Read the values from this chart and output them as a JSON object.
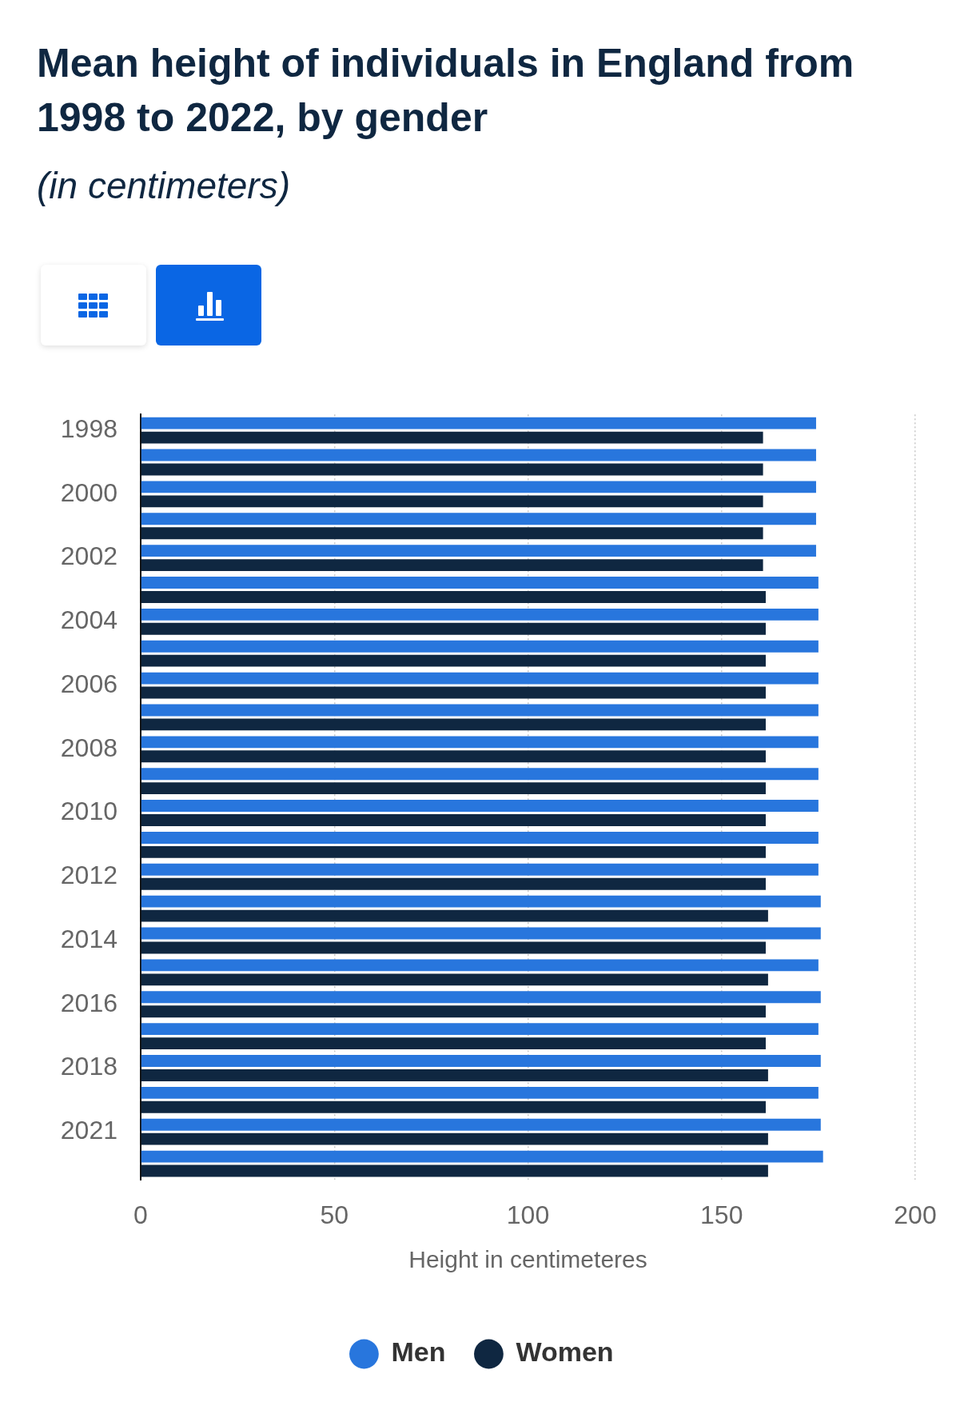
{
  "chart_data": {
    "type": "bar",
    "orientation": "horizontal",
    "title": "Mean height of individuals in England from 1998 to 2022, by gender",
    "subtitle": "(in centimeters)",
    "xlabel": "Height in centimeteres",
    "categories": [
      "1998",
      null,
      "2000",
      null,
      "2002",
      null,
      "2004",
      null,
      "2006",
      null,
      "2008",
      null,
      "2010",
      null,
      "2012",
      null,
      "2014",
      null,
      "2016",
      null,
      "2018",
      null,
      "2021",
      null
    ],
    "series": [
      {
        "name": "Men",
        "color": "#2876dd",
        "values": [
          174.4,
          174.4,
          174.4,
          174.4,
          174.4,
          175.0,
          175.0,
          175.0,
          175.0,
          175.0,
          175.0,
          175.0,
          175.0,
          175.0,
          175.0,
          175.6,
          175.6,
          175.0,
          175.6,
          175.0,
          175.6,
          175.0,
          175.6,
          176.2
        ]
      },
      {
        "name": "Women",
        "color": "#0f2741",
        "values": [
          160.7,
          160.7,
          160.7,
          160.7,
          160.7,
          161.4,
          161.4,
          161.4,
          161.4,
          161.4,
          161.4,
          161.4,
          161.4,
          161.4,
          161.4,
          162.0,
          161.4,
          162.0,
          161.4,
          161.4,
          162.0,
          161.4,
          162.0,
          162.0
        ]
      }
    ],
    "xlim": [
      0,
      200
    ],
    "xticks": [
      0,
      50,
      100,
      150,
      200
    ],
    "grid": "x",
    "legend": "bottom"
  }
}
